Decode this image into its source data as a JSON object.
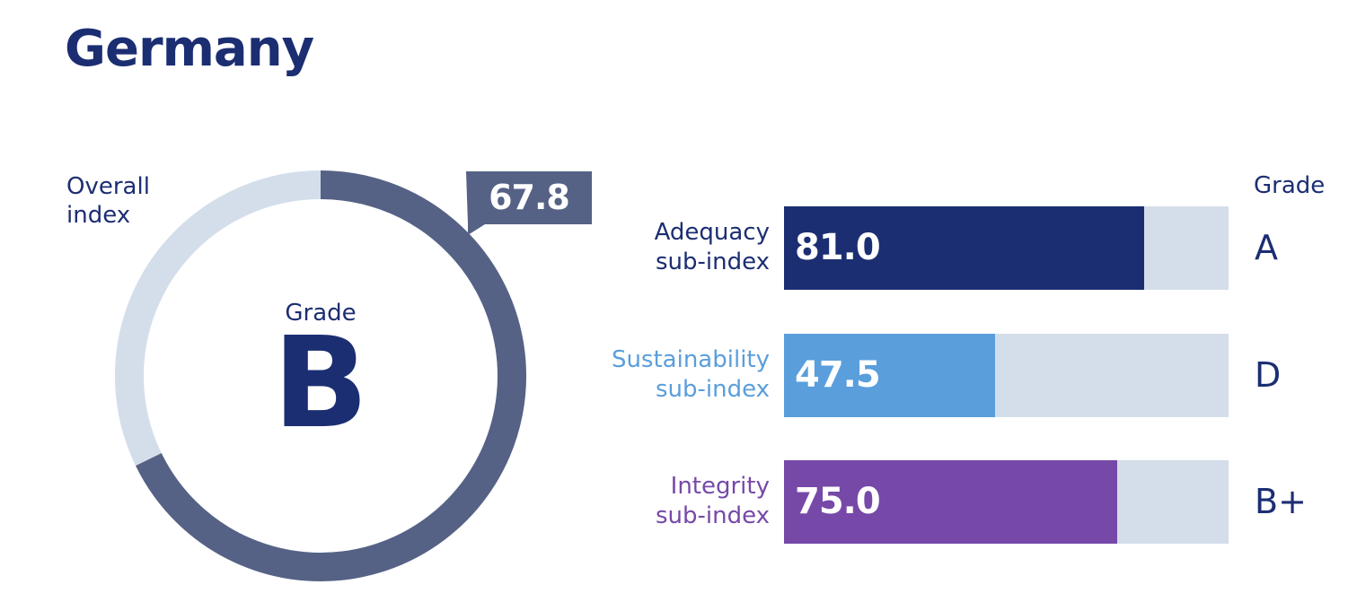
{
  "title": "Germany",
  "colors": {
    "ring": "#556285",
    "track": "#d4deea",
    "text": "#1c2e72"
  },
  "chart_data": [
    {
      "type": "pie",
      "variant": "donut",
      "label": "Overall index",
      "value": 67.8,
      "max": 100,
      "value_label": "67.8",
      "grade_label": "Grade",
      "grade": "B"
    },
    {
      "type": "bar",
      "orientation": "horizontal",
      "xlim": [
        0,
        100
      ],
      "grade_header": "Grade",
      "bars": [
        {
          "label_line1": "Adequacy",
          "label_line2": "sub-index",
          "value": 81.0,
          "value_label": "81.0",
          "grade": "A",
          "color": "#1c2e72"
        },
        {
          "label_line1": "Sustainability",
          "label_line2": "sub-index",
          "value": 47.5,
          "value_label": "47.5",
          "grade": "D",
          "color": "#5a9edc"
        },
        {
          "label_line1": "Integrity",
          "label_line2": "sub-index",
          "value": 75.0,
          "value_label": "75.0",
          "grade": "B+",
          "color": "#7649a8"
        }
      ]
    }
  ]
}
